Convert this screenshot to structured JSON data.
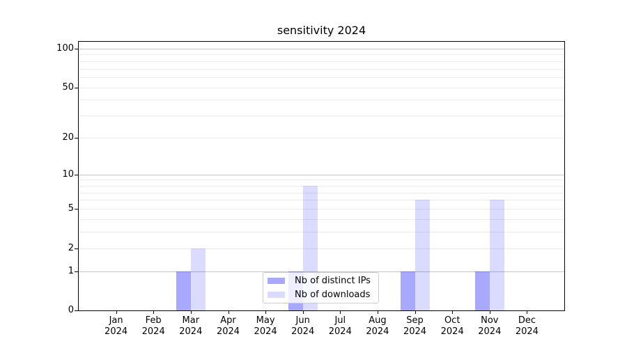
{
  "chart_data": {
    "type": "bar",
    "title": "sensitivity 2024",
    "categories": [
      "Jan",
      "Feb",
      "Mar",
      "Apr",
      "May",
      "Jun",
      "Jul",
      "Aug",
      "Sep",
      "Oct",
      "Nov",
      "Dec"
    ],
    "x_tick_year": "2024",
    "series": [
      {
        "name": "Nb of distinct IPs",
        "base_color": "#0000ff",
        "alpha": 0.34,
        "approx_hex": "#aaaaf8",
        "values": [
          0,
          0,
          1,
          0,
          0,
          1,
          0,
          0,
          1,
          0,
          1,
          0
        ]
      },
      {
        "name": "Nb of downloads",
        "base_color": "#0000ff",
        "alpha": 0.14,
        "approx_hex": "#dadaf8",
        "values": [
          0,
          0,
          2,
          0,
          0,
          8,
          0,
          0,
          6,
          0,
          6,
          0
        ]
      }
    ],
    "yticks": [
      0,
      1,
      2,
      5,
      10,
      20,
      50,
      100
    ],
    "y_scale": "log1p",
    "ylim": [
      0,
      113
    ],
    "grid": {
      "values": [
        1,
        2,
        3,
        4,
        5,
        6,
        7,
        8,
        9,
        10,
        20,
        30,
        40,
        50,
        60,
        70,
        80,
        90,
        100
      ],
      "major": [
        1,
        10,
        100
      ],
      "major_color": "#c4c4c4",
      "minor_color": "#ebebeb"
    },
    "legend": {
      "position": "lower-center",
      "entries": [
        "Nb of distinct IPs",
        "Nb of downloads"
      ]
    }
  }
}
